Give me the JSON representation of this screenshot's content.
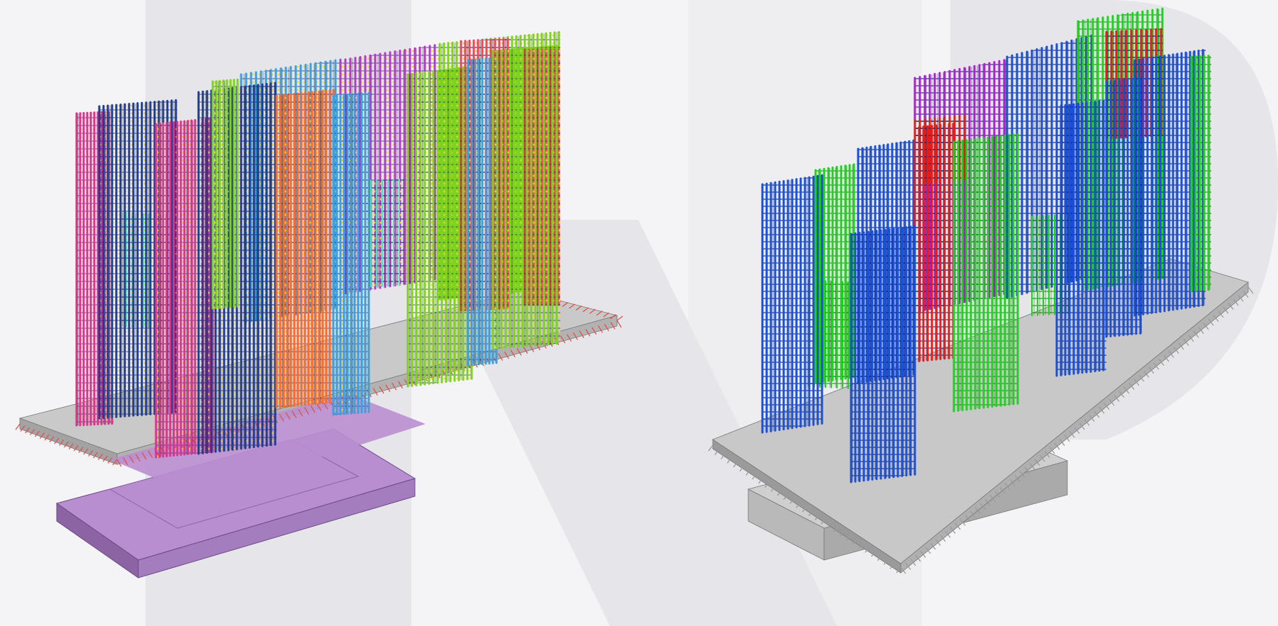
{
  "scene": {
    "background": "#f4f4f6",
    "watermark_color": "#e6e6ea",
    "left_model": {
      "slab_color": "#c9c9c9",
      "slab_edge_color": "#a3a3a3",
      "pedestal_color": "#b98ed0",
      "pedestal_edge_color": "#8c63a3",
      "anchor_color": "#e0504a",
      "bar_colors": [
        "#1f3d8c",
        "#d9338c",
        "#e64a5a",
        "#ff6a2a",
        "#7ed321",
        "#3aa0e0",
        "#b23cc8",
        "#4ee0c0",
        "#ffd23a"
      ]
    },
    "right_model": {
      "slab_color": "#c8c8c8",
      "slab_edge_color": "#9a9a9a",
      "pedestal_color": "#cfcfcf",
      "anchor_color": "#9a9a9a",
      "bar_colors": [
        "#1a4fd6",
        "#22d11f",
        "#e31c1c",
        "#b01ed2"
      ]
    }
  }
}
